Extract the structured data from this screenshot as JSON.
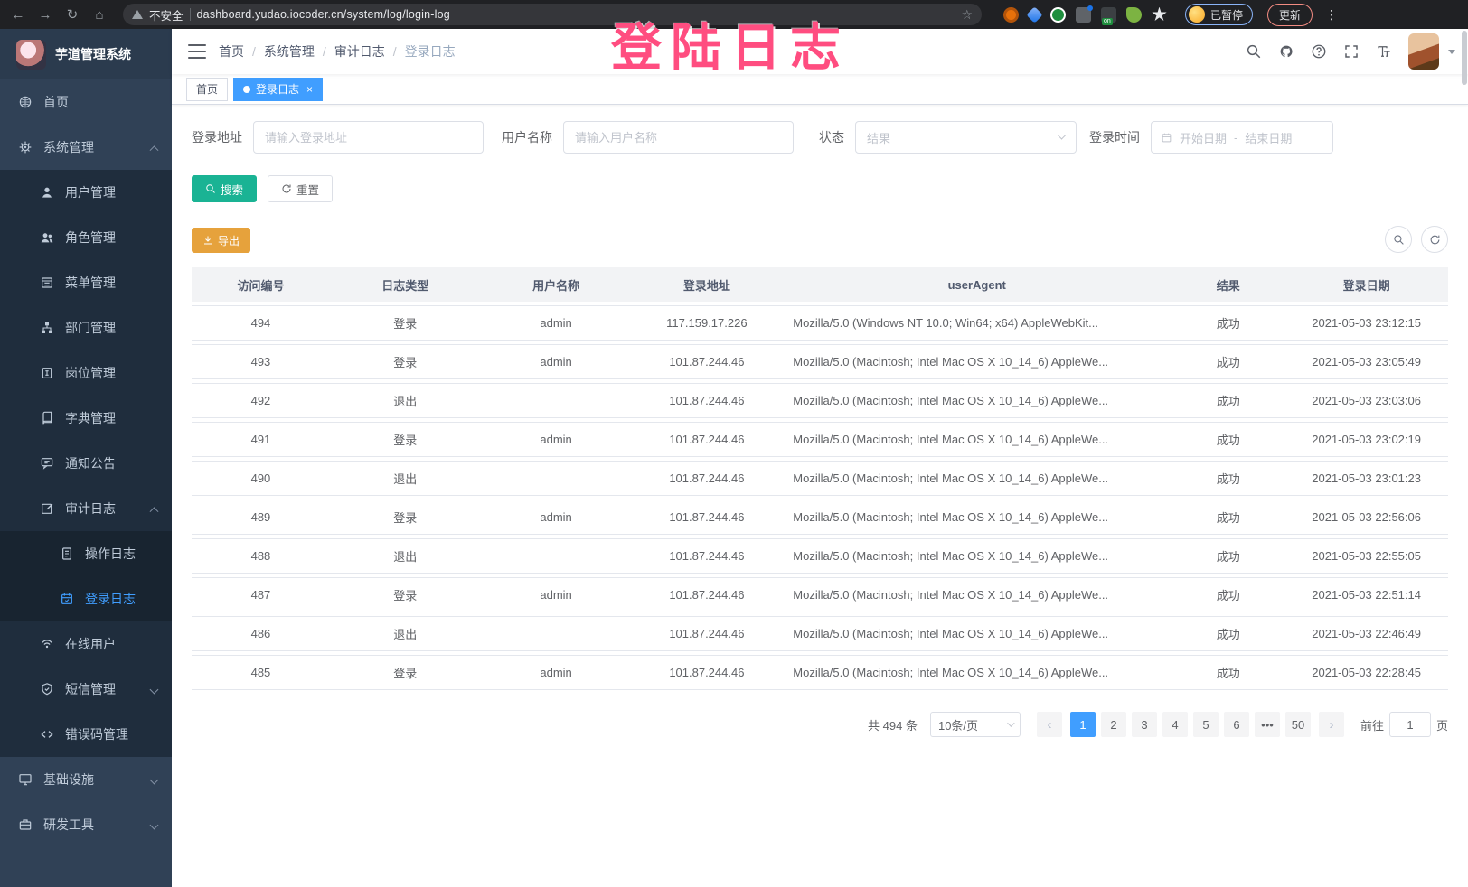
{
  "browser": {
    "security_warning": "不安全",
    "url": "dashboard.yudao.iocoder.cn/system/log/login-log",
    "profile_badge": "已暂停",
    "update_button": "更新"
  },
  "overlay": {
    "text": "登陆日志",
    "color": "#ff4d80"
  },
  "sidebar": {
    "app_title": "芋道管理系统",
    "items": [
      {
        "label": "首页",
        "icon": "i-dashboard",
        "level": 0
      },
      {
        "label": "系统管理",
        "icon": "i-gear",
        "level": 0,
        "chevron": "up"
      },
      {
        "label": "用户管理",
        "icon": "i-user",
        "level": 1
      },
      {
        "label": "角色管理",
        "icon": "i-users",
        "level": 1
      },
      {
        "label": "菜单管理",
        "icon": "i-menu",
        "level": 1
      },
      {
        "label": "部门管理",
        "icon": "i-tree",
        "level": 1
      },
      {
        "label": "岗位管理",
        "icon": "i-badge",
        "level": 1
      },
      {
        "label": "字典管理",
        "icon": "i-dict",
        "level": 1
      },
      {
        "label": "通知公告",
        "icon": "i-announce",
        "level": 1
      },
      {
        "label": "审计日志",
        "icon": "i-audit",
        "level": 1,
        "chevron": "up"
      },
      {
        "label": "操作日志",
        "icon": "i-doc",
        "level": 2
      },
      {
        "label": "登录日志",
        "icon": "i-loginlog",
        "level": 2,
        "active": true
      },
      {
        "label": "在线用户",
        "icon": "i-online",
        "level": 1
      },
      {
        "label": "短信管理",
        "icon": "i-shield",
        "level": 1,
        "chevron": "down"
      },
      {
        "label": "错误码管理",
        "icon": "i-code",
        "level": 1
      },
      {
        "label": "基础设施",
        "icon": "i-monitor",
        "level": 0,
        "chevron": "down"
      },
      {
        "label": "研发工具",
        "icon": "i-tool",
        "level": 0,
        "chevron": "down"
      }
    ]
  },
  "breadcrumb": [
    "首页",
    "系统管理",
    "审计日志",
    "登录日志"
  ],
  "tabs": [
    {
      "label": "首页",
      "active": false
    },
    {
      "label": "登录日志",
      "active": true
    }
  ],
  "filters": {
    "login_address": {
      "label": "登录地址",
      "placeholder": "请输入登录地址"
    },
    "username": {
      "label": "用户名称",
      "placeholder": "请输入用户名称"
    },
    "status": {
      "label": "状态",
      "placeholder": "结果"
    },
    "login_time": {
      "label": "登录时间",
      "start_placeholder": "开始日期",
      "separator": "-",
      "end_placeholder": "结束日期"
    },
    "search_label": "搜索",
    "reset_label": "重置"
  },
  "toolbar": {
    "export_label": "导出"
  },
  "table": {
    "headers": [
      "访问编号",
      "日志类型",
      "用户名称",
      "登录地址",
      "userAgent",
      "结果",
      "登录日期"
    ],
    "rows": [
      {
        "id": "494",
        "type": "登录",
        "user": "admin",
        "ip": "117.159.17.226",
        "agent": "Mozilla/5.0 (Windows NT 10.0; Win64; x64) AppleWebKit...",
        "result": "成功",
        "date": "2021-05-03 23:12:15"
      },
      {
        "id": "493",
        "type": "登录",
        "user": "admin",
        "ip": "101.87.244.46",
        "agent": "Mozilla/5.0 (Macintosh; Intel Mac OS X 10_14_6) AppleWe...",
        "result": "成功",
        "date": "2021-05-03 23:05:49"
      },
      {
        "id": "492",
        "type": "退出",
        "user": "",
        "ip": "101.87.244.46",
        "agent": "Mozilla/5.0 (Macintosh; Intel Mac OS X 10_14_6) AppleWe...",
        "result": "成功",
        "date": "2021-05-03 23:03:06"
      },
      {
        "id": "491",
        "type": "登录",
        "user": "admin",
        "ip": "101.87.244.46",
        "agent": "Mozilla/5.0 (Macintosh; Intel Mac OS X 10_14_6) AppleWe...",
        "result": "成功",
        "date": "2021-05-03 23:02:19"
      },
      {
        "id": "490",
        "type": "退出",
        "user": "",
        "ip": "101.87.244.46",
        "agent": "Mozilla/5.0 (Macintosh; Intel Mac OS X 10_14_6) AppleWe...",
        "result": "成功",
        "date": "2021-05-03 23:01:23"
      },
      {
        "id": "489",
        "type": "登录",
        "user": "admin",
        "ip": "101.87.244.46",
        "agent": "Mozilla/5.0 (Macintosh; Intel Mac OS X 10_14_6) AppleWe...",
        "result": "成功",
        "date": "2021-05-03 22:56:06"
      },
      {
        "id": "488",
        "type": "退出",
        "user": "",
        "ip": "101.87.244.46",
        "agent": "Mozilla/5.0 (Macintosh; Intel Mac OS X 10_14_6) AppleWe...",
        "result": "成功",
        "date": "2021-05-03 22:55:05"
      },
      {
        "id": "487",
        "type": "登录",
        "user": "admin",
        "ip": "101.87.244.46",
        "agent": "Mozilla/5.0 (Macintosh; Intel Mac OS X 10_14_6) AppleWe...",
        "result": "成功",
        "date": "2021-05-03 22:51:14"
      },
      {
        "id": "486",
        "type": "退出",
        "user": "",
        "ip": "101.87.244.46",
        "agent": "Mozilla/5.0 (Macintosh; Intel Mac OS X 10_14_6) AppleWe...",
        "result": "成功",
        "date": "2021-05-03 22:46:49"
      },
      {
        "id": "485",
        "type": "登录",
        "user": "admin",
        "ip": "101.87.244.46",
        "agent": "Mozilla/5.0 (Macintosh; Intel Mac OS X 10_14_6) AppleWe...",
        "result": "成功",
        "date": "2021-05-03 22:28:45"
      }
    ]
  },
  "pagination": {
    "total": "共 494 条",
    "page_size": "10条/页",
    "pages": [
      "1",
      "2",
      "3",
      "4",
      "5",
      "6",
      "•••",
      "50"
    ],
    "active_page": "1",
    "goto_label": "前往",
    "goto_value": "1",
    "page_unit": "页"
  },
  "colors": {
    "primary": "#409EFF",
    "search_button": "#1AB394",
    "export_button": "#E6A23C",
    "sidebar_bg": "#304156",
    "submenu_bg": "#1F2D3D",
    "overlay_text": "#FF4D80"
  }
}
